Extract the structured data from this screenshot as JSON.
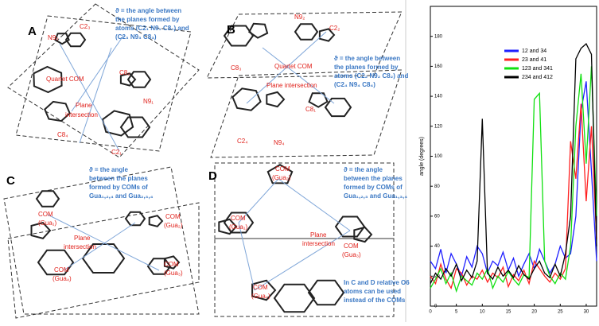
{
  "panels": [
    {
      "letter": "A",
      "definition": [
        "ϑ = the angle between",
        "the planes formed by",
        "atoms (C2₁ N9₁ C8₁) and",
        "(C2₃ N9₃ C8₃)"
      ],
      "labels": [
        "C2₃",
        "N9₃",
        "C8₂",
        "Quartet COM",
        "N9₁",
        "Plane",
        "intersection",
        "C8₄",
        "C2₁"
      ]
    },
    {
      "letter": "B",
      "definition": [
        "ϑ = the angle between",
        "the planes formed by",
        "atoms (C2₂ N9₂ C8₂) and",
        "(C2₄ N9₄ C8₄)"
      ],
      "labels": [
        "N9₂",
        "C2₂",
        "C8₃",
        "Quartet COM",
        "Plane intersection",
        "C8₁",
        "C2₄",
        "N9₄"
      ]
    },
    {
      "letter": "C",
      "definition": [
        "ϑ = the angle",
        "between the planes",
        "formed by COMs of",
        "Gua₁,₂,₄ and Gua₂,₃,₄"
      ],
      "labels": [
        "COM",
        "(Gua₁)",
        "COM",
        "(Gua₂)",
        "Plane",
        "intersection",
        "COM",
        "(Gua₃)",
        "COM",
        "(Gua₄)"
      ]
    },
    {
      "letter": "D",
      "definition": [
        "ϑ = the angle",
        "between the planes",
        "formed by COMs of",
        "Gua₁,₂,₃ and Gua₁,₃,₄"
      ],
      "labels": [
        "COM",
        "(Gua₂)",
        "COM",
        "(Gua₁)",
        "Plane",
        "intersection",
        "COM",
        "(Gua₃)",
        "COM",
        "(Gua₄)"
      ]
    }
  ],
  "note": [
    "In C and D relative O6",
    "atoms can be used",
    "instead of the COMs"
  ],
  "chart_data": {
    "type": "line",
    "y_label": "angle (degrees)",
    "x": [
      0,
      1,
      2,
      3,
      4,
      5,
      6,
      7,
      8,
      9,
      10,
      11,
      12,
      13,
      14,
      15,
      16,
      17,
      18,
      19,
      20,
      21,
      22,
      23,
      24,
      25,
      26,
      27,
      28,
      29,
      30,
      31,
      32
    ],
    "series": [
      {
        "name": "12 and 34",
        "color": "#1f1fff",
        "values": [
          30,
          25,
          38,
          22,
          35,
          28,
          20,
          33,
          26,
          40,
          35,
          22,
          30,
          27,
          36,
          24,
          32,
          20,
          28,
          35,
          25,
          38,
          30,
          22,
          28,
          40,
          32,
          35,
          60,
          130,
          150,
          90,
          30
        ]
      },
      {
        "name": "23 and 41",
        "color": "#ff2020",
        "values": [
          20,
          15,
          28,
          18,
          12,
          25,
          22,
          14,
          20,
          18,
          24,
          16,
          22,
          19,
          26,
          13,
          21,
          17,
          24,
          15,
          30,
          25,
          20,
          16,
          22,
          18,
          25,
          110,
          85,
          135,
          70,
          120,
          45
        ]
      },
      {
        "name": "123 and 341",
        "color": "#10e010",
        "values": [
          12,
          18,
          25,
          15,
          22,
          10,
          20,
          17,
          14,
          22,
          18,
          25,
          12,
          20,
          16,
          23,
          18,
          14,
          21,
          19,
          138,
          142,
          30,
          20,
          15,
          22,
          18,
          40,
          120,
          155,
          95,
          160,
          60
        ]
      },
      {
        "name": "234 and 412",
        "color": "#000000",
        "values": [
          15,
          22,
          18,
          25,
          20,
          28,
          17,
          24,
          19,
          30,
          125,
          22,
          18,
          26,
          20,
          24,
          19,
          27,
          21,
          18,
          25,
          30,
          22,
          19,
          28,
          20,
          35,
          60,
          165,
          172,
          175,
          168,
          40
        ]
      }
    ],
    "xlim": [
      0,
      32
    ],
    "xticks": [
      0,
      5,
      10,
      15,
      20,
      25,
      30
    ],
    "ylim": [
      0,
      200
    ],
    "yticks": [
      0,
      20,
      40,
      60,
      80,
      100,
      120,
      140,
      160,
      180
    ]
  }
}
